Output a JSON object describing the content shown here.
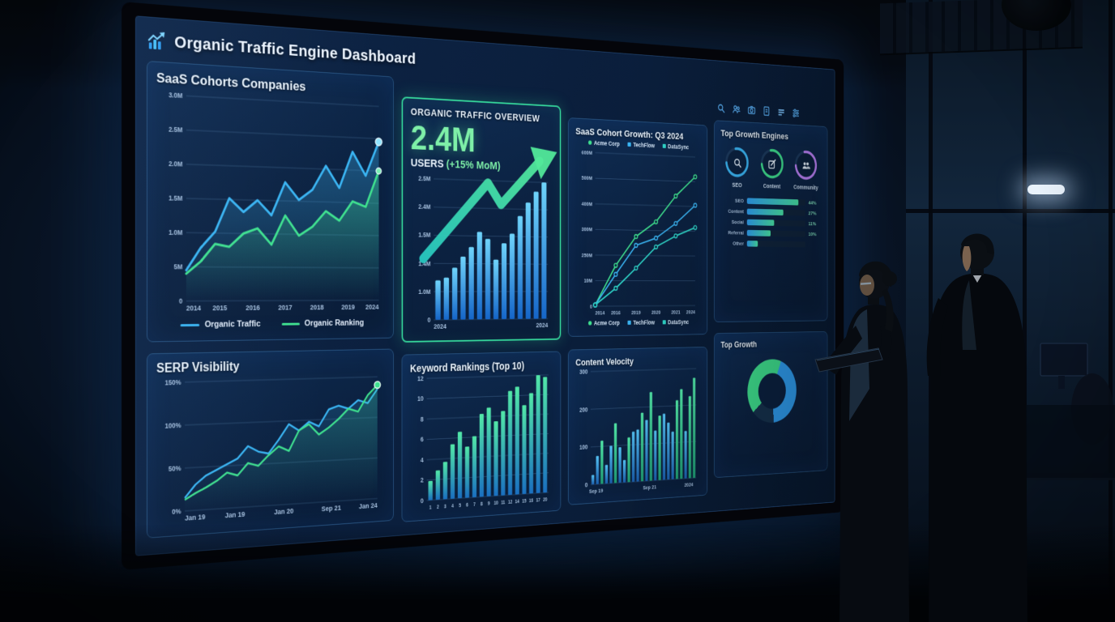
{
  "dashboard": {
    "title": "Organic Traffic Engine Dashboard",
    "toolbar_icons": [
      "search",
      "users",
      "camera",
      "document",
      "menu",
      "settings"
    ]
  },
  "chart_data": [
    {
      "id": "saas-cohorts",
      "type": "area-line",
      "title": "SaaS Cohorts Companies",
      "y_ticks": [
        "3.0M",
        "2.5M",
        "2.0M",
        "1.5M",
        "1.0M",
        "5M",
        "0"
      ],
      "x_ticks": [
        "2014",
        "2015",
        "2016",
        "2017",
        "2018",
        "2019",
        "2024"
      ],
      "ylim": [
        0,
        3
      ],
      "series": [
        {
          "name": "Organic Traffic",
          "color": "#3ab4f2",
          "values": [
            0.45,
            0.78,
            1.02,
            1.52,
            1.32,
            1.5,
            1.28,
            1.78,
            1.52,
            1.68,
            2.05,
            1.72,
            2.28,
            1.92,
            2.45
          ]
        },
        {
          "name": "Organic Ranking",
          "color": "#3fe08f",
          "values": [
            0.4,
            0.58,
            0.84,
            0.8,
            1.0,
            1.08,
            0.84,
            1.28,
            0.98,
            1.12,
            1.36,
            1.22,
            1.52,
            1.44,
            2.0
          ]
        }
      ],
      "legend": [
        "Organic Traffic",
        "Organic Ranking"
      ]
    },
    {
      "id": "traffic-overview",
      "type": "bar-trend",
      "title": "ORGANIC TRAFFIC OVERVIEW",
      "metric": "2.4M",
      "metric_label": "USERS",
      "metric_delta": "(+15% MoM)",
      "y_ticks": [
        "2.5M",
        "2.4M",
        "1.5M",
        "1.4M",
        "1.0M",
        "0"
      ],
      "x_ticks": [
        "2024",
        "2024"
      ],
      "bar_values": [
        0.28,
        0.3,
        0.37,
        0.45,
        0.52,
        0.63,
        0.58,
        0.43,
        0.55,
        0.62,
        0.75,
        0.85,
        0.93,
        1.0
      ]
    },
    {
      "id": "cohort-growth",
      "type": "multi-line",
      "title": "SaaS Cohort Growth: Q3 2024",
      "y_ticks": [
        "600M",
        "500M",
        "400M",
        "300M",
        "250M",
        "10M",
        "0"
      ],
      "x_ticks": [
        "2014",
        "2016",
        "2019",
        "2020",
        "2021",
        "2024"
      ],
      "ylim": [
        0,
        600
      ],
      "series": [
        {
          "name": "Acme Corp",
          "color": "#3fe08f",
          "values": [
            5,
            160,
            275,
            335,
            440,
            520
          ]
        },
        {
          "name": "TechFlow",
          "color": "#3ab4f2",
          "values": [
            5,
            125,
            240,
            270,
            330,
            405
          ]
        },
        {
          "name": "DataSync",
          "color": "#2fd4c8",
          "values": [
            5,
            70,
            150,
            235,
            280,
            315
          ]
        }
      ]
    },
    {
      "id": "growth-engines",
      "type": "engines",
      "title": "Top Growth Engines",
      "rings": [
        {
          "label": "SEO",
          "color": "#3ab4f2",
          "icon": "search"
        },
        {
          "label": "Content",
          "color": "#3fe08f",
          "icon": "edit"
        },
        {
          "label": "Community",
          "color": "#c084fc",
          "icon": "users"
        }
      ],
      "bars": [
        {
          "label": "SEO",
          "value": "44%",
          "pct": 88
        },
        {
          "label": "Content",
          "value": "27%",
          "pct": 62
        },
        {
          "label": "Social",
          "value": "11%",
          "pct": 46
        },
        {
          "label": "Referral",
          "value": "10%",
          "pct": 40
        },
        {
          "label": "Other",
          "value": "",
          "pct": 18
        }
      ]
    },
    {
      "id": "serp-visibility",
      "type": "dual-line",
      "title": "SERP Visibility",
      "y_ticks": [
        "150%",
        "100%",
        "50%",
        "0%"
      ],
      "x_ticks": [
        "Jan 19",
        "Jan 19",
        "Jan 20",
        "Sep 21",
        "Jan 24"
      ],
      "ylim": [
        0,
        150
      ],
      "series": [
        {
          "name": "visibility-blue",
          "color": "#3ab4f2",
          "values": [
            15,
            30,
            40,
            46,
            52,
            58,
            72,
            65,
            62,
            78,
            96,
            88,
            98,
            92,
            112,
            116,
            112,
            122,
            118,
            135
          ]
        },
        {
          "name": "visibility-green",
          "color": "#3fe08f",
          "values": [
            13,
            20,
            26,
            33,
            42,
            38,
            52,
            48,
            60,
            70,
            64,
            88,
            95,
            82,
            90,
            100,
            112,
            108,
            128,
            140
          ]
        }
      ]
    },
    {
      "id": "keyword-rankings",
      "type": "bar",
      "title": "Keyword Rankings (Top 10)",
      "y_ticks": [
        "12",
        "10",
        "8",
        "6",
        "4",
        "2",
        "0"
      ],
      "x_ticks": [
        "1",
        "2",
        "3",
        "4",
        "5",
        "6",
        "7",
        "8",
        "9",
        "10",
        "11",
        "12",
        "14",
        "15",
        "16",
        "17",
        "20"
      ],
      "ylim": [
        0,
        12
      ],
      "values": [
        1.9,
        2.9,
        3.7,
        5.4,
        6.6,
        5.1,
        6.1,
        8.3,
        8.9,
        7.5,
        8.5,
        10.5,
        10.9,
        9.0,
        10.2,
        12.0,
        11.8
      ]
    },
    {
      "id": "content-velocity",
      "type": "bar-multi",
      "title": "Content Velocity",
      "y_ticks": [
        "300",
        "200",
        "100",
        "0"
      ],
      "x_ticks": [
        "Sep 19",
        "Sep 21",
        "2024"
      ],
      "ylim": [
        0,
        300
      ],
      "values": [
        25,
        75,
        115,
        50,
        100,
        160,
        95,
        60,
        120,
        135,
        140,
        185,
        165,
        240,
        135,
        175,
        180,
        155,
        130,
        215,
        245,
        130,
        225,
        275
      ],
      "bar_colors": [
        "b",
        "b",
        "g",
        "b",
        "b",
        "g",
        "b",
        "b",
        "g",
        "b",
        "b",
        "g",
        "b",
        "g",
        "b",
        "g",
        "b",
        "b",
        "b",
        "g",
        "g",
        "b",
        "g",
        "g"
      ]
    },
    {
      "id": "top-growth",
      "type": "donut",
      "title": "Top Growth",
      "segments": [
        {
          "color": "#3fe08f",
          "pct": 42
        },
        {
          "color": "#2f9df0",
          "pct": 43
        },
        {
          "color": "#16324e",
          "pct": 15
        }
      ]
    }
  ]
}
